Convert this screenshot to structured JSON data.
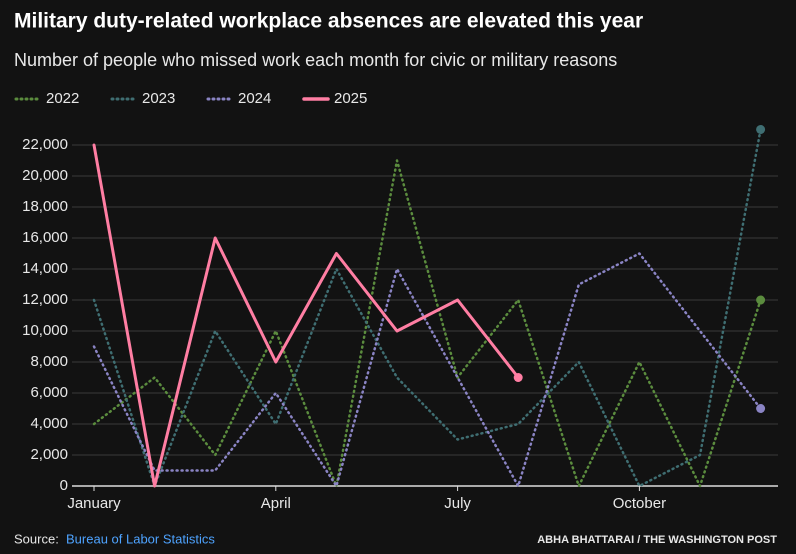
{
  "chart_data": {
    "type": "line",
    "title": "Military duty-related workplace absences are elevated this year",
    "subtitle": "Number of people who missed work each month for civic or military reasons",
    "categories": [
      "January",
      null,
      null,
      "April",
      null,
      null,
      "July",
      null,
      null,
      "October",
      null,
      null
    ],
    "series": [
      {
        "name": "2022",
        "color": "#5b8c3e",
        "style": "dotted",
        "values": [
          4000,
          7000,
          2000,
          10000,
          0,
          21000,
          7000,
          12000,
          0,
          8000,
          0,
          12000
        ]
      },
      {
        "name": "2023",
        "color": "#3f6e72",
        "style": "dotted",
        "values": [
          12000,
          0,
          10000,
          4000,
          14000,
          7000,
          3000,
          4000,
          8000,
          0,
          2000,
          23000
        ]
      },
      {
        "name": "2024",
        "color": "#8a84c4",
        "style": "dotted",
        "values": [
          9000,
          1000,
          1000,
          6000,
          0,
          14000,
          7000,
          0,
          13000,
          15000,
          10000,
          5000
        ]
      },
      {
        "name": "2025",
        "color": "#ff7ea3",
        "style": "solid",
        "values": [
          22000,
          0,
          16000,
          8000,
          15000,
          10000,
          12000,
          7000,
          null,
          null,
          null,
          null
        ]
      }
    ],
    "ylim": [
      0,
      23000
    ],
    "yticks": [
      0,
      {
        "value": 2000,
        "label": "2,000"
      },
      {
        "value": 4000,
        "label": "4,000"
      },
      {
        "value": 6000,
        "label": "6,000"
      },
      {
        "value": 8000,
        "label": "8,000"
      },
      {
        "value": 10000,
        "label": "10,000"
      },
      {
        "value": 12000,
        "label": "12,000"
      },
      {
        "value": 14000,
        "label": "14,000"
      },
      {
        "value": 16000,
        "label": "16,000"
      },
      {
        "value": 18000,
        "label": "18,000"
      },
      {
        "value": 20000,
        "label": "20,000"
      },
      {
        "value": 22000,
        "label": "22,000"
      }
    ],
    "grid": true,
    "source_label": "Source:",
    "source": "Bureau of Labor Statistics",
    "credit": "ABHA BHATTARAI / THE WASHINGTON POST"
  }
}
